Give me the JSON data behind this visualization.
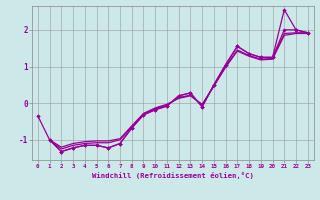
{
  "xlabel": "Windchill (Refroidissement éolien,°C)",
  "background_color": "#cce8e8",
  "grid_color": "#999999",
  "line_color": "#990099",
  "xlim": [
    -0.5,
    23.5
  ],
  "ylim": [
    -1.55,
    2.65
  ],
  "yticks": [
    -1,
    0,
    1,
    2
  ],
  "xticks": [
    0,
    1,
    2,
    3,
    4,
    5,
    6,
    7,
    8,
    9,
    10,
    11,
    12,
    13,
    14,
    15,
    16,
    17,
    18,
    19,
    20,
    21,
    22,
    23
  ],
  "y_main": [
    -0.35,
    -1.0,
    -1.32,
    -1.22,
    -1.15,
    -1.15,
    -1.22,
    -1.1,
    -0.68,
    -0.32,
    -0.18,
    -0.08,
    0.2,
    0.28,
    -0.1,
    0.5,
    1.05,
    1.55,
    1.35,
    1.25,
    1.25,
    2.55,
    2.0,
    1.92
  ],
  "y2": [
    null,
    -1.0,
    -1.32,
    -1.22,
    -1.15,
    -1.15,
    -1.22,
    -1.1,
    -0.68,
    -0.32,
    -0.18,
    -0.08,
    0.2,
    0.28,
    -0.1,
    0.5,
    1.05,
    1.55,
    1.35,
    1.25,
    1.25,
    2.0,
    2.0,
    1.92
  ],
  "y3": [
    null,
    -1.0,
    -1.25,
    -1.15,
    -1.1,
    -1.08,
    -1.08,
    -1.0,
    -0.65,
    -0.3,
    -0.15,
    -0.05,
    0.15,
    0.22,
    -0.05,
    0.48,
    1.0,
    1.45,
    1.3,
    1.2,
    1.22,
    1.9,
    1.92,
    1.92
  ],
  "y4": [
    null,
    -1.0,
    -1.2,
    -1.1,
    -1.05,
    -1.03,
    -1.03,
    -0.97,
    -0.62,
    -0.28,
    -0.13,
    -0.03,
    0.13,
    0.2,
    -0.03,
    0.46,
    0.98,
    1.42,
    1.28,
    1.18,
    1.2,
    1.85,
    1.9,
    1.9
  ]
}
